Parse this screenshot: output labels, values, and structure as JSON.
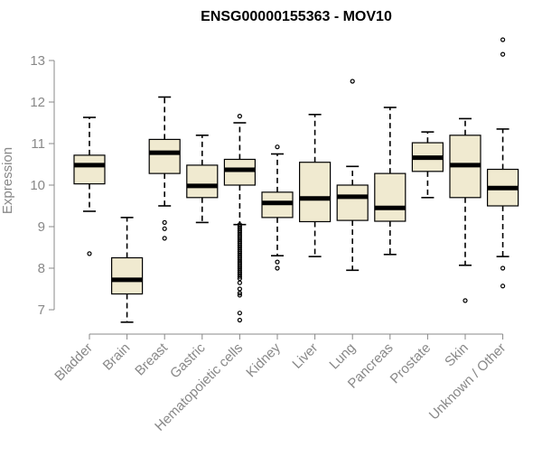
{
  "chart_data": {
    "type": "boxplot",
    "title": "ENSG00000155363 - MOV10",
    "xlabel": "",
    "ylabel": "Expression",
    "ylim": [
      6.6,
      13.6
    ],
    "yticks": [
      7,
      8,
      9,
      10,
      11,
      12,
      13
    ],
    "grid": false,
    "box_color": "#f0ead0",
    "median_color": "#000000",
    "axis_color": "#888888",
    "categories": [
      "Bladder",
      "Brain",
      "Breast",
      "Gastric",
      "Hematopoietic cells",
      "Kidney",
      "Liver",
      "Lung",
      "Pancreas",
      "Prostate",
      "Skin",
      "Unknown / Other"
    ],
    "boxes": [
      {
        "whisker_low": 9.37,
        "q1": 10.03,
        "median": 10.48,
        "q3": 10.72,
        "whisker_high": 11.63,
        "outliers": [
          8.35
        ]
      },
      {
        "whisker_low": 6.7,
        "q1": 7.38,
        "median": 7.72,
        "q3": 8.25,
        "whisker_high": 9.22,
        "outliers": []
      },
      {
        "whisker_low": 9.5,
        "q1": 10.28,
        "median": 10.78,
        "q3": 11.1,
        "whisker_high": 12.12,
        "outliers": [
          9.1,
          8.95,
          8.72
        ]
      },
      {
        "whisker_low": 9.1,
        "q1": 9.7,
        "median": 9.98,
        "q3": 10.48,
        "whisker_high": 11.2,
        "outliers": []
      },
      {
        "whisker_low": 9.05,
        "q1": 10.0,
        "median": 10.37,
        "q3": 10.62,
        "whisker_high": 11.5,
        "outliers": [
          11.66,
          9.05,
          9.0,
          8.95,
          8.9,
          8.85,
          8.8,
          8.75,
          8.7,
          8.65,
          8.6,
          8.55,
          8.5,
          8.45,
          8.4,
          8.35,
          8.3,
          8.25,
          8.2,
          8.15,
          8.1,
          8.05,
          8.0,
          7.95,
          7.9,
          7.85,
          7.8,
          7.75,
          7.65,
          7.5,
          7.4,
          7.35,
          6.92,
          6.75
        ]
      },
      {
        "whisker_low": 8.3,
        "q1": 9.22,
        "median": 9.57,
        "q3": 9.83,
        "whisker_high": 10.75,
        "outliers": [
          10.92,
          8.15,
          8.0
        ]
      },
      {
        "whisker_low": 8.28,
        "q1": 9.12,
        "median": 9.68,
        "q3": 10.55,
        "whisker_high": 11.7,
        "outliers": []
      },
      {
        "whisker_low": 7.95,
        "q1": 9.15,
        "median": 9.72,
        "q3": 10.0,
        "whisker_high": 10.45,
        "outliers": [
          12.5
        ]
      },
      {
        "whisker_low": 8.33,
        "q1": 9.13,
        "median": 9.45,
        "q3": 10.28,
        "whisker_high": 11.87,
        "outliers": []
      },
      {
        "whisker_low": 9.7,
        "q1": 10.33,
        "median": 10.66,
        "q3": 11.02,
        "whisker_high": 11.28,
        "outliers": []
      },
      {
        "whisker_low": 8.07,
        "q1": 9.7,
        "median": 10.48,
        "q3": 11.2,
        "whisker_high": 11.6,
        "outliers": [
          7.22
        ]
      },
      {
        "whisker_low": 8.28,
        "q1": 9.5,
        "median": 9.93,
        "q3": 10.38,
        "whisker_high": 11.35,
        "outliers": [
          13.5,
          13.15,
          8.0,
          7.57
        ]
      }
    ]
  }
}
